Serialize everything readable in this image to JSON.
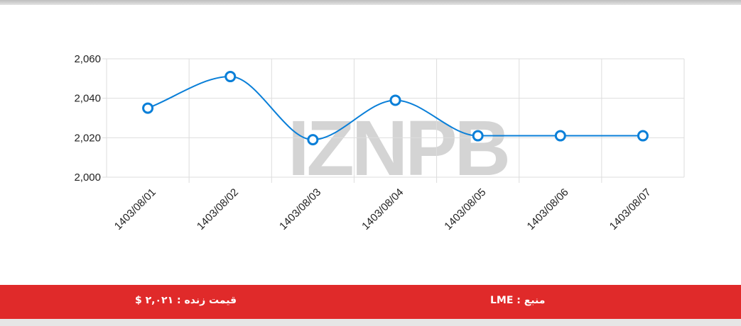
{
  "chart_data": {
    "type": "line",
    "watermark": "IZNPB",
    "categories": [
      "1403/08/01",
      "1403/08/02",
      "1403/08/03",
      "1403/08/04",
      "1403/08/05",
      "1403/08/06",
      "1403/08/07"
    ],
    "values": [
      2035,
      2051,
      2019,
      2039,
      2021,
      2021,
      2021
    ],
    "color": "#0a7fd8",
    "ylim": [
      2000,
      2060
    ],
    "yticks": [
      {
        "value": 2000,
        "label": "2,000"
      },
      {
        "value": 2020,
        "label": "2,020"
      },
      {
        "value": 2040,
        "label": "2,040"
      },
      {
        "value": 2060,
        "label": "2,060"
      }
    ],
    "grid": true
  },
  "footer": {
    "source": "منبع : LME",
    "live_price": "قیمت زنده : ۲,۰۲۱ $"
  }
}
